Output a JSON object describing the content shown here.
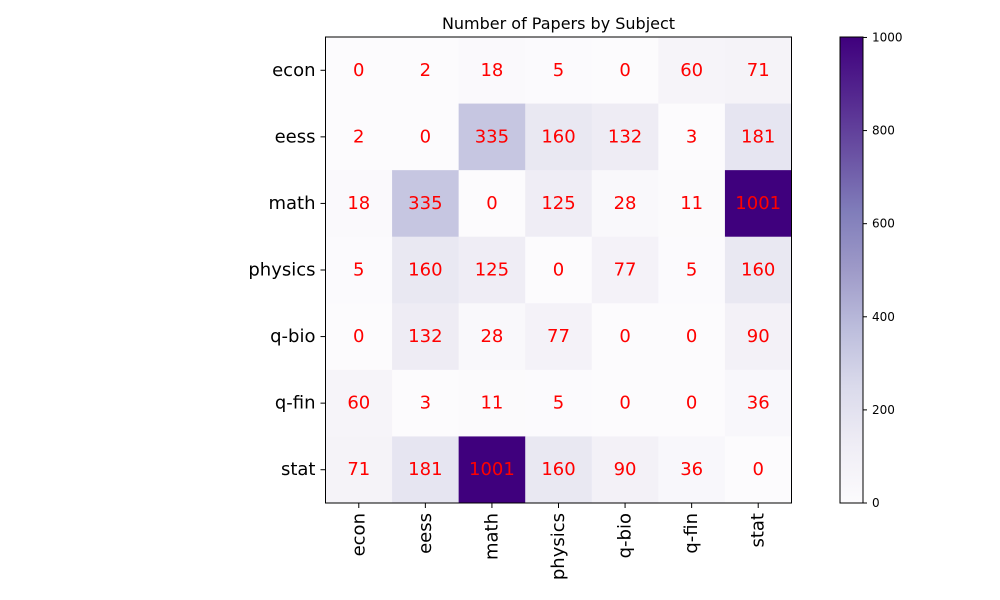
{
  "chart_data": {
    "type": "heatmap",
    "title": "Number of Papers by Subject",
    "x_labels": [
      "econ",
      "eess",
      "math",
      "physics",
      "q-bio",
      "q-fin",
      "stat"
    ],
    "y_labels": [
      "econ",
      "eess",
      "math",
      "physics",
      "q-bio",
      "q-fin",
      "stat"
    ],
    "values": [
      [
        0,
        2,
        18,
        5,
        0,
        60,
        71
      ],
      [
        2,
        0,
        335,
        160,
        132,
        3,
        181
      ],
      [
        18,
        335,
        0,
        125,
        28,
        11,
        1001
      ],
      [
        5,
        160,
        125,
        0,
        77,
        5,
        160
      ],
      [
        0,
        132,
        28,
        77,
        0,
        0,
        90
      ],
      [
        60,
        3,
        11,
        5,
        0,
        0,
        36
      ],
      [
        71,
        181,
        1001,
        160,
        90,
        36,
        0
      ]
    ],
    "colormap": "Purples",
    "value_range": [
      0,
      1001
    ],
    "colorbar": {
      "ticks": [
        0,
        200,
        400,
        600,
        800,
        1000
      ],
      "tick_labels": [
        "0",
        "200",
        "400",
        "600",
        "800",
        "1000"
      ]
    },
    "annotation_color": "#ff0000",
    "x_tick_rotation": 90,
    "grid": false
  }
}
